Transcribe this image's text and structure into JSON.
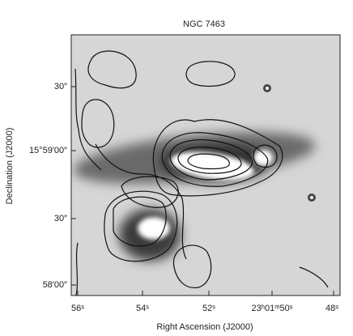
{
  "figure": {
    "title": "NGC 7463",
    "x_axis": {
      "label": "Right Ascension (J2000)",
      "ticks": [
        "56ˢ",
        "54ˢ",
        "52ˢ",
        "23ʰ01ᵐ50ˢ",
        "48ˢ"
      ]
    },
    "y_axis": {
      "label": "Declination (J2000)",
      "ticks": [
        "30″",
        "15°59′00″",
        "30″",
        "58′00″"
      ]
    }
  }
}
